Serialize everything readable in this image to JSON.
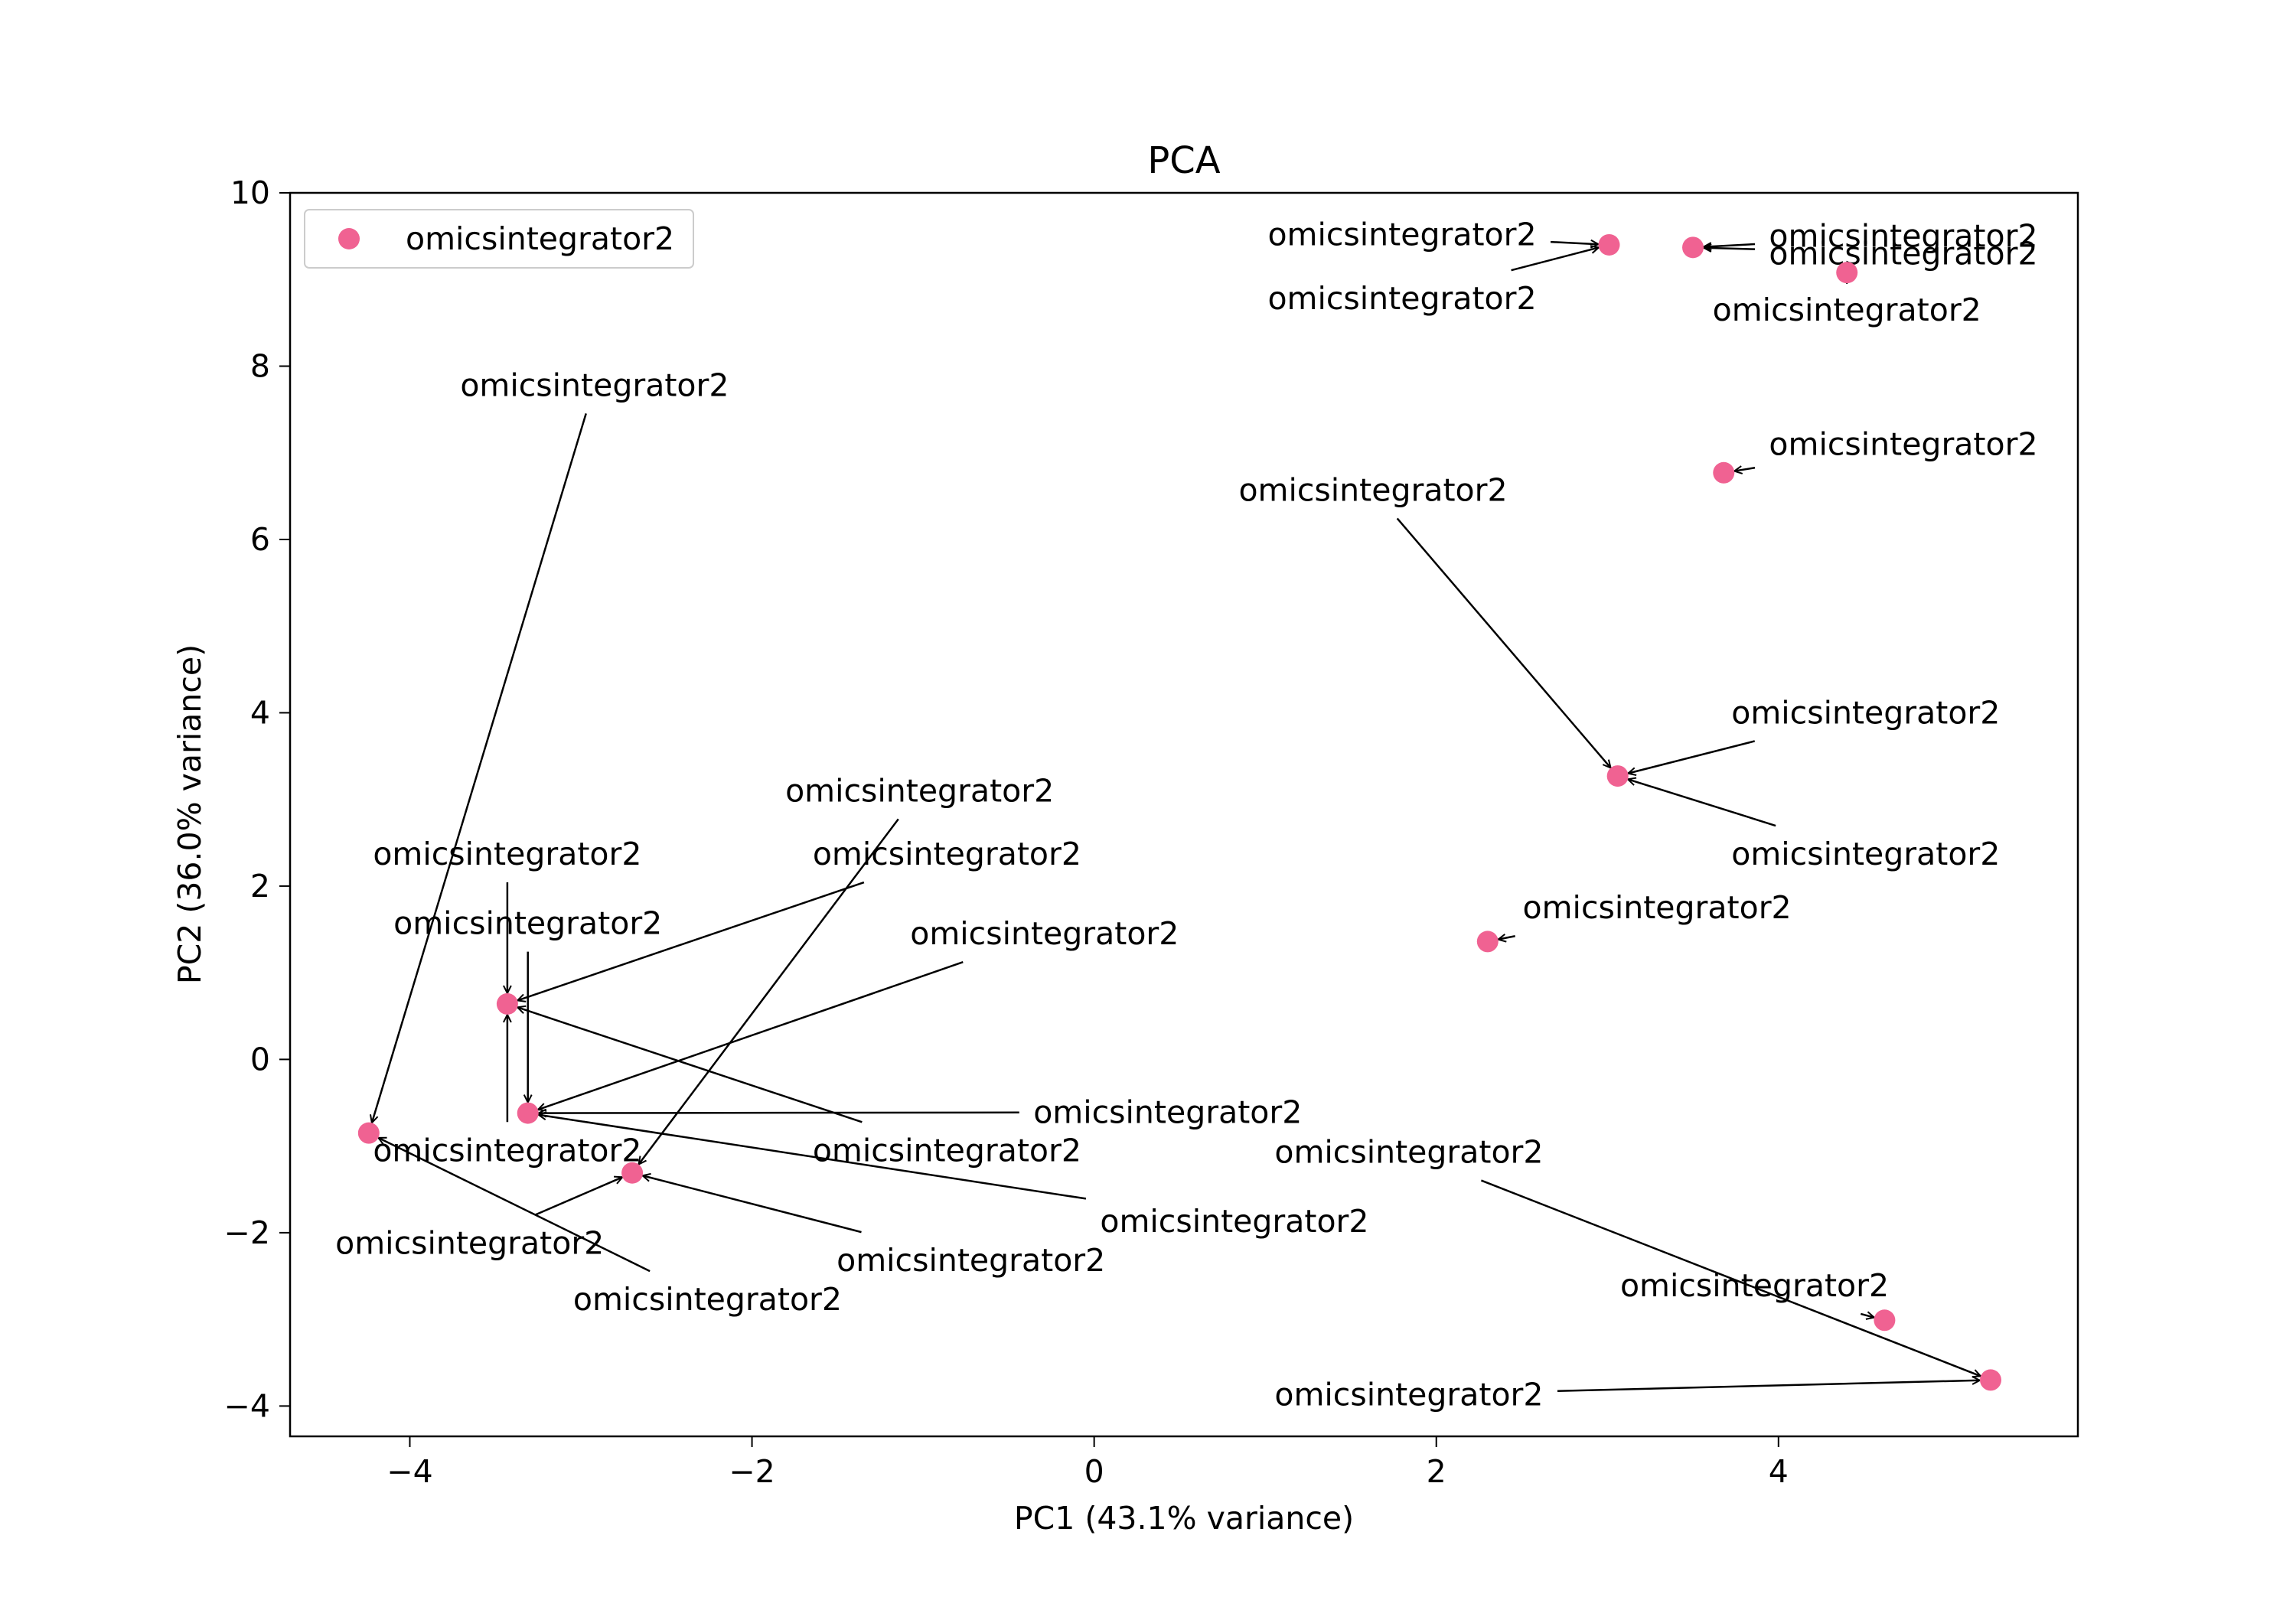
{
  "chart_data": {
    "type": "scatter",
    "title": "PCA",
    "xlabel": "PC1 (43.1% variance)",
    "ylabel": "PC2 (36.0% variance)",
    "xlim": [
      -4.7,
      5.75
    ],
    "ylim": [
      -4.35,
      10.0
    ],
    "xticks": [
      -4,
      -2,
      0,
      2,
      4
    ],
    "xtick_labels": [
      "−4",
      "−2",
      "0",
      "2",
      "4"
    ],
    "yticks": [
      -4,
      -2,
      0,
      2,
      4,
      6,
      8,
      10
    ],
    "ytick_labels": [
      "−4",
      "−2",
      "0",
      "2",
      "4",
      "6",
      "8",
      "10"
    ],
    "grid": false,
    "legend_position": "top-left",
    "marker_color": "#f06292",
    "series": [
      {
        "name": "omicsintegrator2",
        "points": [
          {
            "x": 3.01,
            "y": 9.4
          },
          {
            "x": 3.5,
            "y": 9.37
          },
          {
            "x": 4.4,
            "y": 9.08
          },
          {
            "x": 3.68,
            "y": 6.77
          },
          {
            "x": 3.06,
            "y": 3.27
          },
          {
            "x": 2.3,
            "y": 1.36
          },
          {
            "x": -3.43,
            "y": 0.64
          },
          {
            "x": -3.31,
            "y": -0.62
          },
          {
            "x": -4.24,
            "y": -0.85
          },
          {
            "x": -2.7,
            "y": -1.31
          },
          {
            "x": 4.62,
            "y": -3.01
          },
          {
            "x": 5.24,
            "y": -3.7
          }
        ]
      }
    ],
    "annotations": [
      {
        "text": "omicsintegrator2",
        "tx": 1.8,
        "ty": 9.52,
        "px": 3.01,
        "py": 9.4
      },
      {
        "text": "omicsintegrator2",
        "tx": 1.8,
        "ty": 8.78,
        "px": 3.01,
        "py": 9.4
      },
      {
        "text": "omicsintegrator2",
        "tx": 4.73,
        "ty": 9.5,
        "px": 3.5,
        "py": 9.37
      },
      {
        "text": "omicsintegrator2",
        "tx": 4.73,
        "ty": 9.3,
        "px": 3.5,
        "py": 9.37
      },
      {
        "text": "omicsintegrator2",
        "tx": 4.4,
        "ty": 8.65,
        "px": 4.4,
        "py": 9.08
      },
      {
        "text": "omicsintegrator2",
        "tx": 4.73,
        "ty": 7.1,
        "px": 3.68,
        "py": 6.77
      },
      {
        "text": "omicsintegrator2",
        "tx": 1.63,
        "ty": 6.57,
        "px": 3.06,
        "py": 3.27
      },
      {
        "text": "omicsintegrator2",
        "tx": 4.51,
        "ty": 4.0,
        "px": 3.06,
        "py": 3.27
      },
      {
        "text": "omicsintegrator2",
        "tx": 4.51,
        "ty": 2.37,
        "px": 3.06,
        "py": 3.27
      },
      {
        "text": "omicsintegrator2",
        "tx": 3.29,
        "ty": 1.75,
        "px": 2.3,
        "py": 1.36
      },
      {
        "text": "omicsintegrator2",
        "tx": -2.92,
        "ty": 7.78,
        "px": -4.24,
        "py": -0.85
      },
      {
        "text": "omicsintegrator2",
        "tx": -1.02,
        "ty": 3.1,
        "px": -2.7,
        "py": -1.31
      },
      {
        "text": "omicsintegrator2",
        "tx": -3.43,
        "ty": 2.37,
        "px": -3.43,
        "py": 0.64
      },
      {
        "text": "omicsintegrator2",
        "tx": -0.86,
        "ty": 2.37,
        "px": -3.43,
        "py": 0.64
      },
      {
        "text": "omicsintegrator2",
        "tx": -3.31,
        "ty": 1.57,
        "px": -3.31,
        "py": -0.62
      },
      {
        "text": "omicsintegrator2",
        "tx": -0.29,
        "ty": 1.45,
        "px": -3.31,
        "py": -0.62
      },
      {
        "text": "omicsintegrator2",
        "tx": 0.43,
        "ty": -0.61,
        "px": -3.31,
        "py": -0.62
      },
      {
        "text": "omicsintegrator2",
        "tx": -3.43,
        "ty": -1.05,
        "px": -3.43,
        "py": 0.64
      },
      {
        "text": "omicsintegrator2",
        "tx": -0.86,
        "ty": -1.05,
        "px": -3.43,
        "py": 0.64
      },
      {
        "text": "omicsintegrator2",
        "tx": 0.82,
        "ty": -1.87,
        "px": -3.31,
        "py": -0.62
      },
      {
        "text": "omicsintegrator2",
        "tx": -3.65,
        "ty": -2.12,
        "px": -2.7,
        "py": -1.31
      },
      {
        "text": "omicsintegrator2",
        "tx": -0.72,
        "ty": -2.32,
        "px": -2.7,
        "py": -1.31
      },
      {
        "text": "omicsintegrator2",
        "tx": -2.26,
        "ty": -2.77,
        "px": -4.24,
        "py": -0.85
      },
      {
        "text": "omicsintegrator2",
        "tx": 1.84,
        "ty": -1.07,
        "px": 5.24,
        "py": -3.7
      },
      {
        "text": "omicsintegrator2",
        "tx": 1.84,
        "ty": -3.87,
        "px": 5.24,
        "py": -3.7
      },
      {
        "text": "omicsintegrator2",
        "tx": 3.86,
        "ty": -2.61,
        "px": 4.62,
        "py": -3.01
      }
    ]
  }
}
